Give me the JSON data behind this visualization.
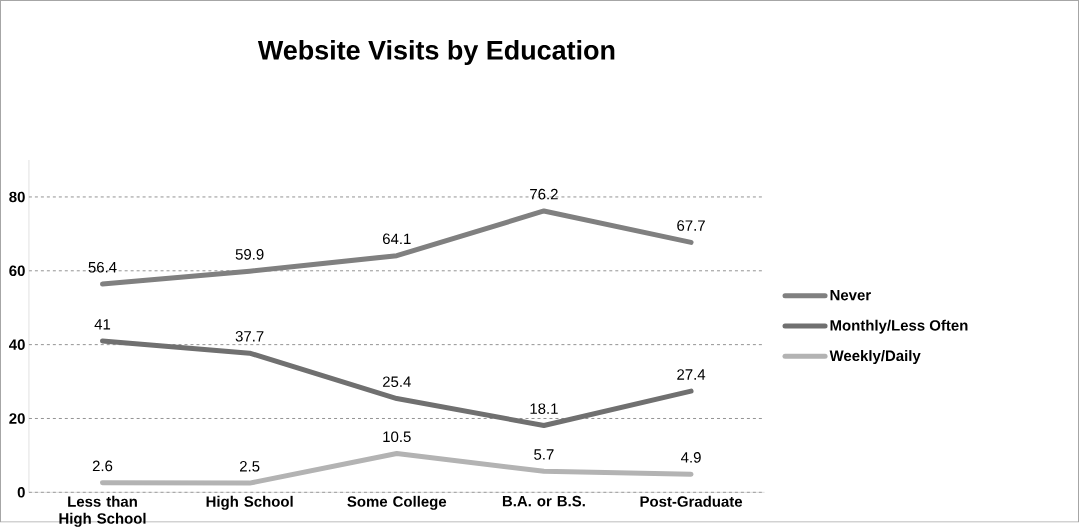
{
  "chart_data": {
    "type": "line",
    "title": "Website Visits by Education",
    "categories": [
      "Less than High School",
      "High School",
      "Some College",
      "B.A. or B.S.",
      "Post-Graduate"
    ],
    "series": [
      {
        "name": "Never",
        "color": "#808080",
        "values": [
          56.4,
          59.9,
          64.1,
          76.2,
          67.7
        ]
      },
      {
        "name": "Monthly/Less Often",
        "color": "#707070",
        "values": [
          41,
          37.7,
          25.4,
          18.1,
          27.4
        ]
      },
      {
        "name": "Weekly/Daily",
        "color": "#b3b3b3",
        "values": [
          2.6,
          2.5,
          10.5,
          5.7,
          4.9
        ]
      }
    ],
    "ylim": [
      0,
      90
    ],
    "yticks": [
      0,
      20,
      40,
      60,
      80
    ],
    "grid": "y",
    "legend": "right",
    "data_labels": true,
    "marker": "none",
    "line_style": "solid"
  }
}
